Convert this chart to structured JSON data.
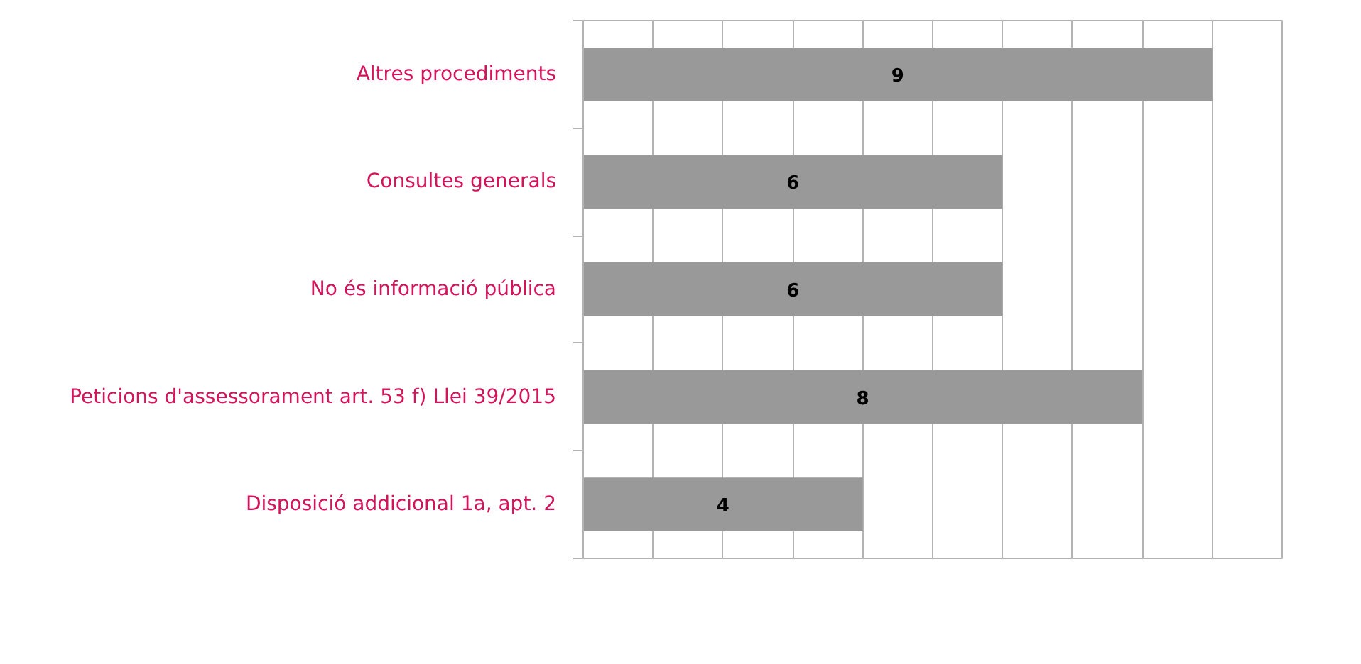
{
  "chart_data": {
    "type": "bar",
    "orientation": "horizontal",
    "categories": [
      "Altres procediments",
      "Consultes generals",
      "No és informació pública",
      "Peticions d'assessorament art. 53 f) Llei 39/2015",
      "Disposició addicional 1a, apt. 2"
    ],
    "values": [
      9,
      6,
      6,
      8,
      4
    ],
    "color": "#999999",
    "xlim": [
      0,
      10
    ],
    "xticks": [
      {
        "value": 0,
        "label": null
      },
      {
        "value": 1,
        "label": null
      },
      {
        "value": 2,
        "label": null
      },
      {
        "value": 3,
        "label": null
      },
      {
        "value": 4,
        "label": null
      },
      {
        "value": 5,
        "label": null
      },
      {
        "value": 6,
        "label": null
      },
      {
        "value": 7,
        "label": null
      },
      {
        "value": 8,
        "label": null
      },
      {
        "value": 9,
        "label": null
      },
      {
        "value": 10,
        "label": null
      }
    ],
    "grid": "x",
    "tick_labels": "y",
    "data_labels": true
  }
}
